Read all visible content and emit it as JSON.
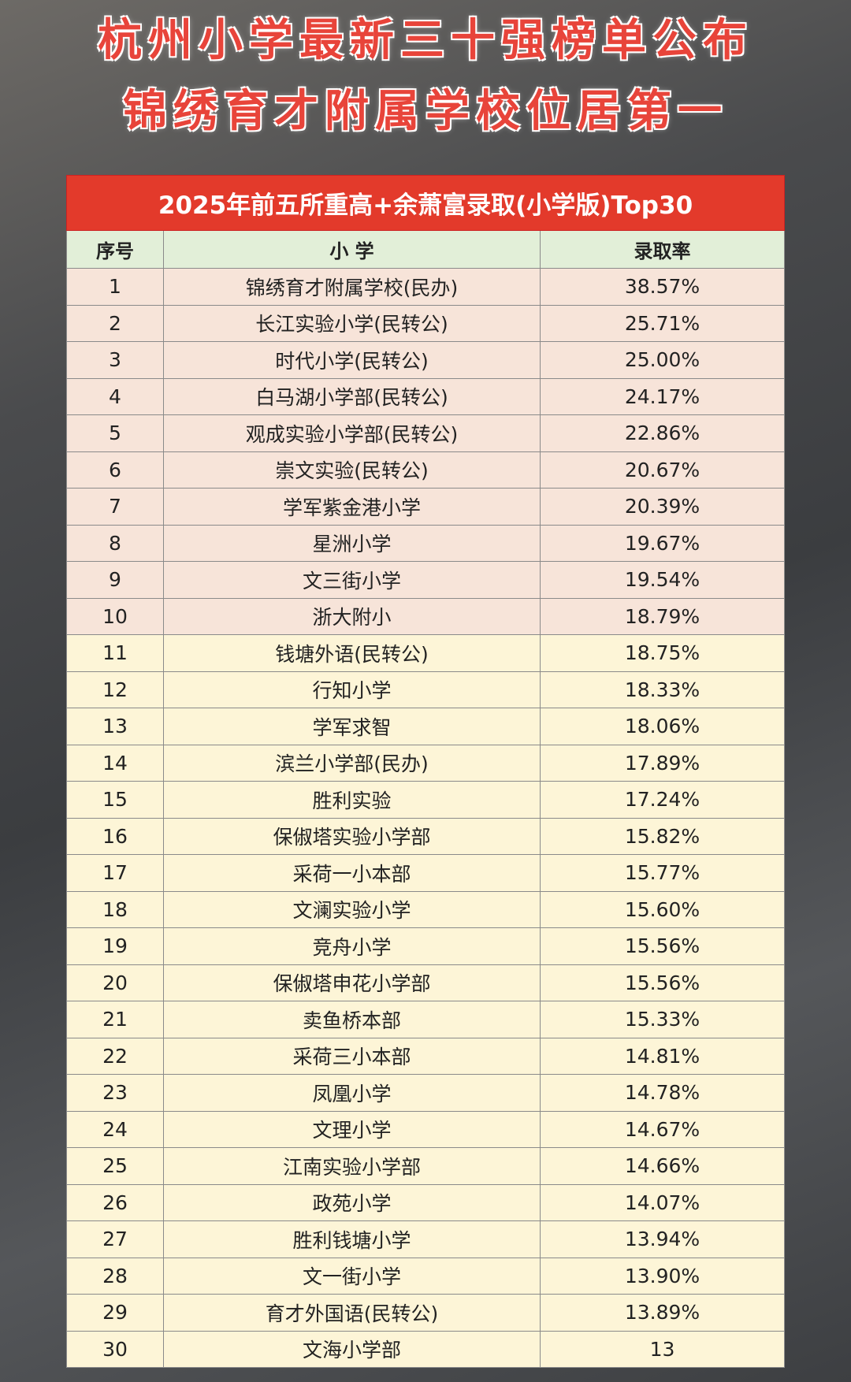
{
  "header": {
    "title_line1": "杭州小学最新三十强榜单公布",
    "title_line2": "锦绣育才附属学校位居第一"
  },
  "table": {
    "caption": "2025年前五所重高+余萧富录取(小学版)Top30",
    "columns": [
      "序号",
      "小 学",
      "录取率"
    ],
    "rows": [
      [
        "1",
        "锦绣育才附属学校(民办)",
        "38.57%"
      ],
      [
        "2",
        "长江实验小学(民转公)",
        "25.71%"
      ],
      [
        "3",
        "时代小学(民转公)",
        "25.00%"
      ],
      [
        "4",
        "白马湖小学部(民转公)",
        "24.17%"
      ],
      [
        "5",
        "观成实验小学部(民转公)",
        "22.86%"
      ],
      [
        "6",
        "崇文实验(民转公)",
        "20.67%"
      ],
      [
        "7",
        "学军紫金港小学",
        "20.39%"
      ],
      [
        "8",
        "星洲小学",
        "19.67%"
      ],
      [
        "9",
        "文三街小学",
        "19.54%"
      ],
      [
        "10",
        "浙大附小",
        "18.79%"
      ],
      [
        "11",
        "钱塘外语(民转公)",
        "18.75%"
      ],
      [
        "12",
        "行知小学",
        "18.33%"
      ],
      [
        "13",
        "学军求智",
        "18.06%"
      ],
      [
        "14",
        "滨兰小学部(民办)",
        "17.89%"
      ],
      [
        "15",
        "胜利实验",
        "17.24%"
      ],
      [
        "16",
        "保俶塔实验小学部",
        "15.82%"
      ],
      [
        "17",
        "采荷一小本部",
        "15.77%"
      ],
      [
        "18",
        "文澜实验小学",
        "15.60%"
      ],
      [
        "19",
        "竞舟小学",
        "15.56%"
      ],
      [
        "20",
        "保俶塔申花小学部",
        "15.56%"
      ],
      [
        "21",
        "卖鱼桥本部",
        "15.33%"
      ],
      [
        "22",
        "采荷三小本部",
        "14.81%"
      ],
      [
        "23",
        "凤凰小学",
        "14.78%"
      ],
      [
        "24",
        "文理小学",
        "14.67%"
      ],
      [
        "25",
        "江南实验小学部",
        "14.66%"
      ],
      [
        "26",
        "政苑小学",
        "14.07%"
      ],
      [
        "27",
        "胜利钱塘小学",
        "13.94%"
      ],
      [
        "28",
        "文一街小学",
        "13.90%"
      ],
      [
        "29",
        "育才外国语(民转公)",
        "13.89%"
      ],
      [
        "30",
        "文海小学部",
        "13"
      ]
    ]
  }
}
